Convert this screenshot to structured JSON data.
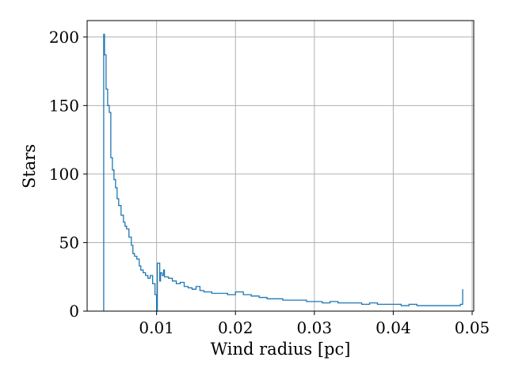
{
  "chart_data": {
    "type": "line",
    "style": "step-histogram",
    "xlabel": "Wind radius [pc]",
    "ylabel": "Stars",
    "xlim": [
      0.0012,
      0.0502
    ],
    "ylim": [
      0,
      212
    ],
    "xticks": [
      0.01,
      0.02,
      0.03,
      0.04,
      0.05
    ],
    "xtick_labels": [
      "0.01",
      "0.02",
      "0.03",
      "0.04",
      "0.05"
    ],
    "yticks": [
      0,
      50,
      100,
      150,
      200
    ],
    "ytick_labels": [
      "0",
      "50",
      "100",
      "150",
      "200"
    ],
    "grid": true,
    "series": [
      {
        "color": "#1f77b4",
        "x": [
          0.0033,
          0.0033,
          0.0034,
          0.0036,
          0.0038,
          0.004,
          0.0042,
          0.0044,
          0.0046,
          0.0048,
          0.005,
          0.0052,
          0.0055,
          0.0058,
          0.006,
          0.0062,
          0.0065,
          0.0068,
          0.007,
          0.0072,
          0.0075,
          0.0078,
          0.008,
          0.0083,
          0.0086,
          0.0089,
          0.0092,
          0.0095,
          0.0098,
          0.01,
          0.0101,
          0.0104,
          0.0105,
          0.0107,
          0.0109,
          0.011,
          0.0115,
          0.012,
          0.0125,
          0.013,
          0.0135,
          0.014,
          0.0145,
          0.015,
          0.0155,
          0.016,
          0.017,
          0.018,
          0.019,
          0.02,
          0.021,
          0.022,
          0.023,
          0.024,
          0.025,
          0.026,
          0.027,
          0.028,
          0.029,
          0.03,
          0.031,
          0.032,
          0.033,
          0.034,
          0.035,
          0.036,
          0.037,
          0.038,
          0.039,
          0.04,
          0.041,
          0.042,
          0.043,
          0.044,
          0.045,
          0.046,
          0.047,
          0.048,
          0.0485,
          0.0488
        ],
        "y": [
          0,
          202,
          187,
          162,
          150,
          145,
          112,
          103,
          96,
          90,
          82,
          77,
          70,
          65,
          62,
          60,
          54,
          48,
          42,
          40,
          38,
          33,
          30,
          28,
          26,
          24,
          26,
          20,
          12,
          0,
          35,
          22,
          28,
          26,
          30,
          25,
          24,
          22,
          20,
          21,
          18,
          17,
          16,
          18,
          15,
          14,
          13,
          13,
          12,
          14,
          12,
          11,
          10,
          9,
          9,
          8,
          8,
          8,
          7,
          7,
          6,
          7,
          6,
          6,
          6,
          5,
          6,
          5,
          5,
          5,
          4,
          5,
          4,
          4,
          4,
          4,
          4,
          4,
          5,
          16
        ]
      }
    ]
  }
}
